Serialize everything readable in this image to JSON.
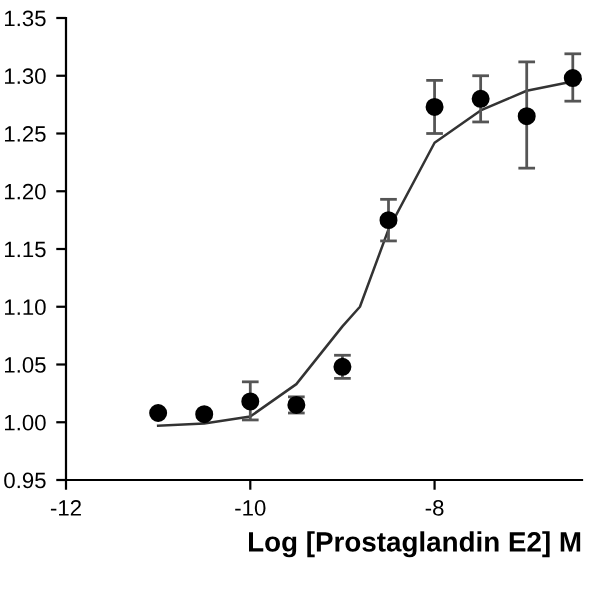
{
  "chart_data": {
    "type": "scatter",
    "xlabel": "Log [Prostaglandin E2] M",
    "xlim": [
      -12,
      -6.4
    ],
    "xticks": [
      -12,
      -10,
      -8
    ],
    "ylim": [
      0.95,
      1.35
    ],
    "yticks": [
      {
        "value": 0.95,
        "label": "0.95"
      },
      {
        "value": 1.0,
        "label": "1.00"
      },
      {
        "value": 1.05,
        "label": "1.05"
      },
      {
        "value": 1.1,
        "label": "1.10"
      },
      {
        "value": 1.15,
        "label": "1.15"
      },
      {
        "value": 1.2,
        "label": "1.20"
      },
      {
        "value": 1.25,
        "label": "1.25"
      },
      {
        "value": 1.3,
        "label": "1.30"
      },
      {
        "value": 1.35,
        "label": "1.35"
      }
    ],
    "grid": false,
    "series": [
      {
        "color": "#000000",
        "marker": "circle",
        "x": [
          -11,
          -10.5,
          -10,
          -9.5,
          -9,
          -8.5,
          -8,
          -7.5,
          -7,
          -6.5
        ],
        "values": [
          1.008,
          1.007,
          1.018,
          1.015,
          1.048,
          1.175,
          1.273,
          1.28,
          1.265,
          1.298
        ],
        "errors": [
          null,
          null,
          [
            1.002,
            1.035
          ],
          [
            1.008,
            1.022
          ],
          [
            1.038,
            1.058
          ],
          [
            1.157,
            1.193
          ],
          [
            1.25,
            1.296
          ],
          [
            1.26,
            1.3
          ],
          [
            1.22,
            1.312
          ],
          [
            1.278,
            1.319
          ]
        ]
      },
      {
        "type": "line",
        "color": "#333333",
        "marker": "none",
        "line_style": "solid",
        "x": [
          -11,
          -10.5,
          -10,
          -9.5,
          -9,
          -8.81,
          -8.5,
          -8,
          -7.5,
          -7,
          -6.5,
          -6.4
        ],
        "values": [
          0.997,
          0.999,
          1.005,
          1.033,
          1.083,
          1.1,
          1.167,
          1.242,
          1.27,
          1.287,
          1.295,
          1.297
        ]
      }
    ]
  }
}
